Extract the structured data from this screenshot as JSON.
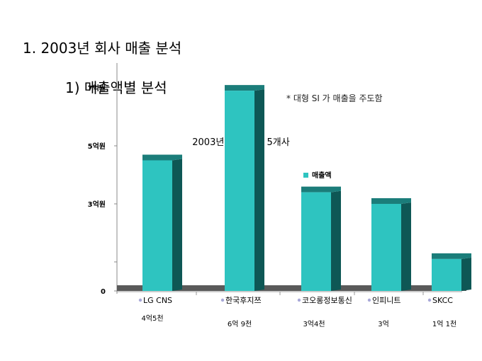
{
  "slide": {
    "heading1": "1. 2003년 회사 매출 분석",
    "heading2": "1)  매출액별 분석",
    "note": "* 대형 SI 가 매출을 주도함"
  },
  "chart_data": {
    "type": "bar",
    "title": "2003년 주요 매출 5개사",
    "categories": [
      "LG CNS",
      "한국후지쯔",
      "코오롱정보통신",
      "인피니트",
      "SKCC"
    ],
    "series": [
      {
        "name": "매출액",
        "values": [
          4.5,
          6.9,
          3.4,
          3.0,
          1.1
        ]
      }
    ],
    "value_labels": [
      "4억5천",
      "6억 9천",
      "3억4천",
      "3억",
      "1억 1천"
    ],
    "yticks": [
      {
        "value": 0,
        "label": "0"
      },
      {
        "value": 3,
        "label": "3억원"
      },
      {
        "value": 5,
        "label": "5억원"
      },
      {
        "value": 7,
        "label": "7억원"
      }
    ],
    "ylim": [
      0,
      8
    ],
    "legend_position": "top-right",
    "colors": {
      "bar_face": "#2ec4c0",
      "bar_side": "#0e5755",
      "bar_top": "#1b7d7a",
      "floor": "#5a5a5a",
      "bullet": "#a8a8d8"
    }
  }
}
